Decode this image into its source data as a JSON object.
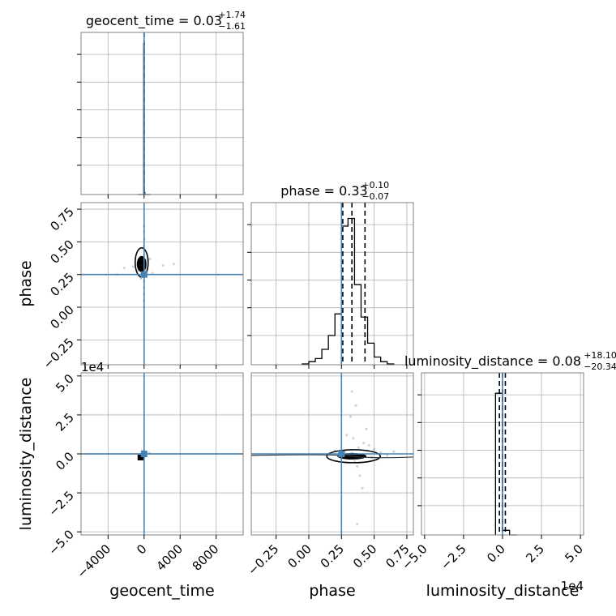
{
  "chart_data": {
    "type": "corner",
    "parameters": [
      {
        "name": "geocent_time",
        "axis_label": "geocent_time",
        "title": "geocent_time = 0.03",
        "title_sup": "+1.74",
        "title_sub": "−1.61",
        "range": [
          -7000,
          11000
        ],
        "ticks": [
          -4000,
          0,
          4000,
          8000
        ],
        "tick_labels": [
          "−4000",
          "0",
          "4000",
          "8000"
        ],
        "truth": 0,
        "quantiles": [
          -1.58,
          0.03,
          1.77
        ],
        "hist": {
          "edges": [
            -700,
            -40,
            20,
            80,
            700
          ],
          "heights": [
            0,
            0.98,
            0.015,
            0
          ]
        }
      },
      {
        "name": "phase",
        "axis_label": "phase",
        "title": "phase = 0.33",
        "title_sup": "+0.10",
        "title_sub": "−0.07",
        "range": [
          -0.44,
          0.8
        ],
        "ticks": [
          -0.25,
          0.0,
          0.25,
          0.5,
          0.75
        ],
        "tick_labels": [
          "−0.25",
          "0.00",
          "0.25",
          "0.50",
          "0.75"
        ],
        "y_tick_labels": [
          "−0.25",
          "0.00",
          "0.25",
          "0.50",
          "0.75"
        ],
        "truth": 0.25,
        "quantiles": [
          0.26,
          0.33,
          0.43
        ],
        "hist": {
          "edges": [
            -0.05,
            0.0,
            0.05,
            0.1,
            0.15,
            0.2,
            0.25,
            0.3,
            0.35,
            0.4,
            0.45,
            0.5,
            0.55,
            0.6,
            0.65
          ],
          "heights": [
            0.005,
            0.02,
            0.04,
            0.1,
            0.19,
            0.33,
            0.9,
            0.95,
            0.52,
            0.31,
            0.14,
            0.05,
            0.02,
            0.005
          ]
        }
      },
      {
        "name": "luminosity_distance",
        "axis_label": "luminosity_distance",
        "title": "luminosity_distance = 0.08",
        "title_sup": "+18.10",
        "title_sub": "−20.34",
        "range": [
          -5.2,
          5.2
        ],
        "ticks": [
          -5.0,
          -2.5,
          0.0,
          2.5,
          5.0
        ],
        "tick_labels": [
          "−5.0",
          "−2.5",
          "0.0",
          "2.5",
          "5.0"
        ],
        "y_tick_labels": [
          "−5.0",
          "−2.5",
          "0.0",
          "2.5",
          "5.0"
        ],
        "offset_label": "1e4",
        "truth": 0,
        "quantiles": [
          -0.2,
          0.0,
          0.18
        ],
        "hist": {
          "edges": [
            -0.45,
            0.0,
            0.45,
            0.9
          ],
          "heights": [
            0.92,
            0.03,
            0.0
          ]
        }
      }
    ],
    "scatter": {
      "phase_vs_time": [
        [
          -5,
          0.33
        ],
        [
          10,
          0.31
        ],
        [
          -20,
          0.36
        ],
        [
          30,
          0.28
        ],
        [
          0,
          0.4
        ],
        [
          -40,
          0.3
        ],
        [
          60,
          0.35
        ],
        [
          -10,
          0.25
        ],
        [
          15,
          0.44
        ],
        [
          -60,
          0.32
        ],
        [
          80,
          0.29
        ],
        [
          25,
          0.2
        ],
        [
          -30,
          0.47
        ],
        [
          5,
          0.15
        ],
        [
          -90,
          0.38
        ],
        [
          120,
          0.34
        ],
        [
          -150,
          0.27
        ],
        [
          40,
          0.52
        ],
        [
          -8,
          0.1
        ],
        [
          200,
          0.3
        ],
        [
          -220,
          0.33
        ],
        [
          12,
          0.58
        ],
        [
          -15,
          0.05
        ],
        [
          300,
          0.36
        ],
        [
          -350,
          0.22
        ],
        [
          -700,
          0.28
        ],
        [
          650,
          0.37
        ],
        [
          -1200,
          0.31
        ],
        [
          900,
          0.26
        ],
        [
          -2200,
          0.3
        ],
        [
          2100,
          0.32
        ],
        [
          3300,
          0.33
        ],
        [
          -3000,
          0.25
        ],
        [
          0,
          0.62
        ],
        [
          5,
          0.0
        ]
      ],
      "dist_vs_time": [
        [
          -10,
          -0.1
        ],
        [
          20,
          0.05
        ],
        [
          -30,
          -0.2
        ],
        [
          40,
          0.15
        ],
        [
          -60,
          0.0
        ],
        [
          80,
          -0.05
        ],
        [
          -100,
          0.1
        ],
        [
          150,
          -0.15
        ],
        [
          -200,
          0.2
        ],
        [
          250,
          0.0
        ],
        [
          -400,
          -0.1
        ],
        [
          600,
          0.05
        ]
      ],
      "dist_vs_phase": [
        [
          0.3,
          -0.1
        ],
        [
          0.33,
          0.05
        ],
        [
          0.36,
          -0.2
        ],
        [
          0.28,
          0.15
        ],
        [
          0.4,
          -0.05
        ],
        [
          0.25,
          0.1
        ],
        [
          0.45,
          0.2
        ],
        [
          0.31,
          -0.3
        ],
        [
          0.38,
          0.4
        ],
        [
          0.35,
          -0.5
        ],
        [
          0.42,
          0.7
        ],
        [
          0.34,
          1.0
        ],
        [
          0.37,
          -0.8
        ],
        [
          0.5,
          0.3
        ],
        [
          0.48,
          -0.2
        ],
        [
          0.55,
          0.1
        ],
        [
          0.44,
          1.6
        ],
        [
          0.32,
          2.4
        ],
        [
          0.39,
          -1.4
        ],
        [
          0.36,
          3.1
        ],
        [
          0.41,
          -2.2
        ],
        [
          0.33,
          4.0
        ],
        [
          0.37,
          -4.5
        ],
        [
          0.6,
          -0.1
        ],
        [
          0.2,
          0.2
        ],
        [
          0.15,
          0.0
        ],
        [
          0.65,
          0.15
        ],
        [
          0.52,
          -0.35
        ],
        [
          0.46,
          0.55
        ],
        [
          0.29,
          1.2
        ]
      ]
    }
  }
}
